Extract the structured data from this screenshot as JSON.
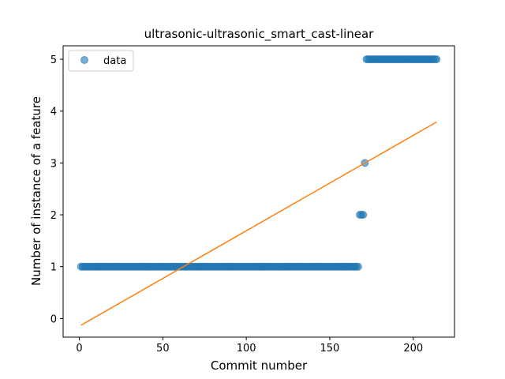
{
  "chart_data": {
    "type": "scatter",
    "title": "ultrasonic-ultrasonic_smart_cast-linear",
    "xlabel": "Commit number",
    "ylabel": "Number of instance of a feature",
    "xlim": [
      -9.7,
      224.7
    ],
    "ylim": [
      -0.36,
      5.26
    ],
    "xticks": [
      0,
      50,
      100,
      150,
      200
    ],
    "yticks": [
      0,
      1,
      2,
      3,
      4,
      5
    ],
    "grid": false,
    "legend": {
      "position": "top-left",
      "entries": [
        "data"
      ]
    },
    "colors": {
      "data": "#1f77b4",
      "fit": "#ff7f0e"
    },
    "series": [
      {
        "name": "data",
        "kind": "scatter",
        "segments": [
          {
            "x_start": 1,
            "x_end": 167,
            "y": 1
          },
          {
            "x_start": 168,
            "x_end": 170,
            "y": 2
          },
          {
            "x_start": 171,
            "x_end": 171,
            "y": 3
          },
          {
            "x_start": 172,
            "x_end": 214,
            "y": 5
          }
        ]
      },
      {
        "kind": "line",
        "x": [
          1,
          214
        ],
        "y": [
          -0.13,
          3.79
        ]
      }
    ]
  }
}
